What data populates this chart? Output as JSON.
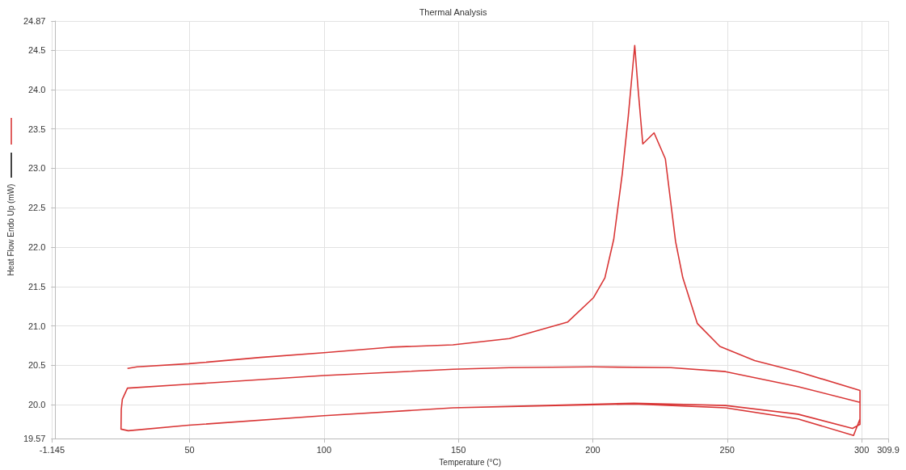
{
  "chart_data": {
    "type": "line",
    "title": "Thermal Analysis",
    "xlabel": "Temperature (°C)",
    "ylabel": "Heat Flow Endo Up (mW)",
    "series": [
      {
        "color": "#d93636",
        "x": [
          26.9,
          30.5,
          49.7,
          76.3,
          100,
          124.6,
          148,
          169,
          190.7,
          200.3,
          204.5,
          207.8,
          211,
          213.2,
          215.6,
          216.8,
          218.6,
          222.8,
          227,
          230.8,
          233.5,
          238.9,
          247.3,
          260.2,
          276.3,
          299.4,
          299.4,
          299.4,
          297,
          276.3,
          249.4,
          215.3,
          200.3,
          148,
          100,
          49.7,
          27.2,
          24.5,
          24.6,
          25,
          26.9,
          49.7,
          100,
          148,
          169,
          200,
          229,
          249.4,
          276.3,
          299.4,
          299.4,
          296.6,
          276.3,
          249.4,
          215.3,
          148,
          100
        ],
        "values": [
          20.46,
          20.48,
          20.52,
          20.6,
          20.66,
          20.73,
          20.76,
          20.84,
          21.05,
          21.36,
          21.61,
          22.1,
          22.94,
          23.66,
          24.56,
          24.03,
          23.31,
          23.45,
          23.12,
          22.07,
          21.61,
          21.03,
          20.74,
          20.56,
          20.42,
          20.18,
          20.0,
          19.82,
          19.61,
          19.82,
          19.96,
          20.01,
          20.0,
          19.96,
          19.86,
          19.74,
          19.67,
          19.69,
          19.94,
          20.07,
          20.21,
          20.26,
          20.37,
          20.45,
          20.47,
          20.48,
          20.47,
          20.42,
          20.23,
          20.03,
          19.75,
          19.7,
          19.88,
          19.99,
          20.02,
          19.96,
          19.86
        ]
      }
    ],
    "xlim": [
      -1.145,
      309.9
    ],
    "xticks": [
      -1.145,
      50,
      100,
      150,
      200,
      250,
      300,
      309.9
    ],
    "ylim": [
      19.57,
      24.87
    ],
    "yticks": [
      19.57,
      {
        "value": 20,
        "label": "20.0"
      },
      20.5,
      {
        "value": 21,
        "label": "21.0"
      },
      21.5,
      {
        "value": 22,
        "label": "22.0"
      },
      22.5,
      {
        "value": 23,
        "label": "23.0"
      },
      23.5,
      {
        "value": 24,
        "label": "24.0"
      },
      24.5,
      24.87
    ],
    "grid": true,
    "marker": "none",
    "line_style": "solid"
  }
}
